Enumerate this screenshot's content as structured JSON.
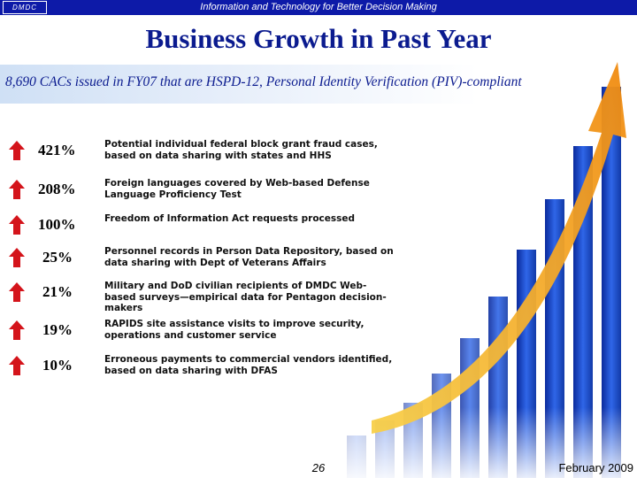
{
  "header": {
    "logo_text": "DMDC",
    "tagline": "Information and Technology for Better Decision Making"
  },
  "title": "Business Growth in Past Year",
  "subtitle": "8,690 CACs issued in FY07 that are HSPD-12, Personal Identity Verification (PIV)-compliant",
  "rows": [
    {
      "percent": "421%",
      "text": "Potential individual federal block grant fraud cases, based on data sharing with states and HHS"
    },
    {
      "percent": "208%",
      "text": "Foreign languages covered by Web-based Defense Language Proficiency Test"
    },
    {
      "percent": "100%",
      "text": "Freedom of Information Act requests processed"
    },
    {
      "percent": "25%",
      "text": "Personnel records in Person Data Repository, based on data sharing with Dept of Veterans Affairs"
    },
    {
      "percent": "21%",
      "text": "Military and DoD civilian recipients of DMDC Web-based surveys—empirical data for Pentagon decision-makers"
    },
    {
      "percent": "19%",
      "text": "RAPIDS site assistance visits to improve security, operations and customer service"
    },
    {
      "percent": "10%",
      "text": "Erroneous payments to commercial vendors identified, based on data sharing with DFAS"
    }
  ],
  "footer": {
    "page_number": "26",
    "date": "February 2009"
  },
  "colors": {
    "header_bar": "#0d1aa8",
    "title": "#0b1b8f",
    "arrow": "#d4141b",
    "bars": "#1e4fd6",
    "growth_arrow": "#f6a21a"
  },
  "icons": {
    "row_arrow": "red-up-arrow-icon"
  }
}
